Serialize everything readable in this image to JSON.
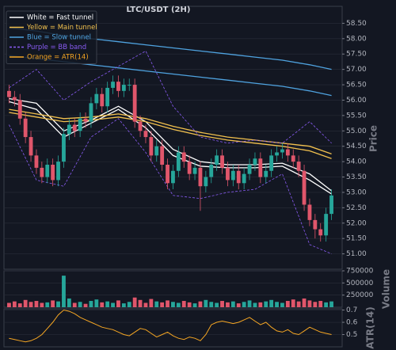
{
  "chart_data": {
    "type": "candlestick",
    "title": "LTC/USDT (2H)",
    "y_label": "Price",
    "up_color": "#26a69a",
    "down_color": "#e0566b",
    "grid": true,
    "legend_position": "upper left",
    "ylim": [
      50.5,
      59.0
    ],
    "yticks": [
      {
        "value": 51,
        "label": "51.00"
      },
      {
        "value": 51.5,
        "label": "51.50"
      },
      {
        "value": 52,
        "label": "52.00"
      },
      {
        "value": 52.5,
        "label": "52.50"
      },
      {
        "value": 53,
        "label": "53.00"
      },
      {
        "value": 53.5,
        "label": "53.50"
      },
      {
        "value": 54,
        "label": "54.00"
      },
      {
        "value": 54.5,
        "label": "54.50"
      },
      {
        "value": 55,
        "label": "55.00"
      },
      {
        "value": 55.5,
        "label": "55.50"
      },
      {
        "value": 56,
        "label": "56.00"
      },
      {
        "value": 56.5,
        "label": "56.50"
      },
      {
        "value": 57,
        "label": "57.00"
      },
      {
        "value": 57.5,
        "label": "57.50"
      },
      {
        "value": 58,
        "label": "58.00"
      },
      {
        "value": 58.5,
        "label": "58.50"
      }
    ],
    "open": [
      56.3,
      56.1,
      56.0,
      55.4,
      54.8,
      54.2,
      53.8,
      53.5,
      53.9,
      53.4,
      54.0,
      54.9,
      55.2,
      55.0,
      55.4,
      55.3,
      55.9,
      56.2,
      55.8,
      56.4,
      56.6,
      56.3,
      56.5,
      56.5,
      55.3,
      55.0,
      54.8,
      54.2,
      54.5,
      53.9,
      53.3,
      53.7,
      54.3,
      54.0,
      53.6,
      53.8,
      53.2,
      53.5,
      53.9,
      54.2,
      53.8,
      53.4,
      53.7,
      53.3,
      53.6,
      53.9,
      54.1,
      53.5,
      53.7,
      54.2,
      54.3,
      54.4,
      54.2,
      54.0,
      53.7,
      52.6,
      52.1,
      51.8,
      51.6,
      52.3
    ],
    "high": [
      56.5,
      56.3,
      56.2,
      55.6,
      55.0,
      54.4,
      54.0,
      54.1,
      54.1,
      54.2,
      55.1,
      55.4,
      55.4,
      55.6,
      55.6,
      56.1,
      56.4,
      56.4,
      56.6,
      56.8,
      56.8,
      56.7,
      56.7,
      56.7,
      55.5,
      55.2,
      55.0,
      54.7,
      54.7,
      54.1,
      53.9,
      54.5,
      54.5,
      54.2,
      54.0,
      54.0,
      53.7,
      54.1,
      54.4,
      54.4,
      54.0,
      53.9,
      53.9,
      53.8,
      54.1,
      54.3,
      54.3,
      53.9,
      54.4,
      54.5,
      54.6,
      54.6,
      54.4,
      54.2,
      53.9,
      52.8,
      52.3,
      52.0,
      52.5,
      53.1
    ],
    "low": [
      55.9,
      55.8,
      55.2,
      54.6,
      54.0,
      53.6,
      53.3,
      53.3,
      53.2,
      53.2,
      53.8,
      54.7,
      54.8,
      54.8,
      55.1,
      55.1,
      55.7,
      55.6,
      55.6,
      56.2,
      56.1,
      56.1,
      56.3,
      55.1,
      54.8,
      54.6,
      54.0,
      54.0,
      53.7,
      53.1,
      53.1,
      53.5,
      53.8,
      53.4,
      53.4,
      52.4,
      53.0,
      53.3,
      53.7,
      53.6,
      53.2,
      53.2,
      53.1,
      53.1,
      53.4,
      53.7,
      53.3,
      53.3,
      53.5,
      54.0,
      54.1,
      54.0,
      53.8,
      53.5,
      52.4,
      51.9,
      51.5,
      51.4,
      51.4,
      52.1
    ],
    "close": [
      56.1,
      56.0,
      55.4,
      54.8,
      54.2,
      53.8,
      53.5,
      53.9,
      53.4,
      54.0,
      54.9,
      55.2,
      55.0,
      55.4,
      55.3,
      55.9,
      56.2,
      55.8,
      56.4,
      56.6,
      56.3,
      56.5,
      56.5,
      55.3,
      55.0,
      54.8,
      54.2,
      54.5,
      53.9,
      53.3,
      53.7,
      54.3,
      54.0,
      53.6,
      53.8,
      53.2,
      53.5,
      53.9,
      54.2,
      53.8,
      53.4,
      53.7,
      53.3,
      53.6,
      53.9,
      54.1,
      53.5,
      53.7,
      54.2,
      54.3,
      54.4,
      54.2,
      54.0,
      53.7,
      52.6,
      52.1,
      51.8,
      51.6,
      52.3,
      52.9
    ],
    "line_x": [
      0,
      5,
      10,
      15,
      20,
      25,
      30,
      35,
      40,
      45,
      50,
      55,
      59
    ],
    "lines": [
      {
        "color": "#ffffff",
        "dashed": false,
        "values": [
          56.05,
          55.9,
          55.0,
          55.35,
          55.8,
          55.3,
          54.4,
          54.0,
          53.9,
          53.9,
          53.95,
          53.6,
          53.05
        ]
      },
      {
        "color": "#ffffff",
        "dashed": false,
        "values": [
          55.95,
          55.7,
          54.8,
          55.25,
          55.7,
          55.1,
          54.2,
          53.85,
          53.8,
          53.8,
          53.85,
          53.4,
          52.95
        ]
      },
      {
        "color": "#f2c14e",
        "dashed": false,
        "values": [
          55.7,
          55.55,
          55.4,
          55.45,
          55.55,
          55.4,
          55.15,
          54.95,
          54.8,
          54.7,
          54.6,
          54.5,
          54.25
        ]
      },
      {
        "color": "#f2c14e",
        "dashed": false,
        "values": [
          55.6,
          55.45,
          55.3,
          55.35,
          55.45,
          55.3,
          55.05,
          54.85,
          54.7,
          54.6,
          54.5,
          54.35,
          54.1
        ]
      },
      {
        "color": "#4fa3e0",
        "dashed": false,
        "values": [
          58.35,
          58.25,
          58.1,
          58.0,
          57.9,
          57.8,
          57.7,
          57.6,
          57.5,
          57.4,
          57.3,
          57.15,
          57.0
        ]
      },
      {
        "color": "#4fa3e0",
        "dashed": false,
        "values": [
          57.45,
          57.35,
          57.25,
          57.15,
          57.05,
          56.95,
          56.85,
          56.75,
          56.65,
          56.55,
          56.45,
          56.3,
          56.15
        ]
      },
      {
        "color": "#8a5cf5",
        "dashed": true,
        "values": [
          56.4,
          57.0,
          56.0,
          56.6,
          57.1,
          57.6,
          55.8,
          54.8,
          54.6,
          54.7,
          54.6,
          55.3,
          54.6
        ]
      },
      {
        "color": "#8a5cf5",
        "dashed": true,
        "values": [
          55.2,
          53.4,
          53.2,
          54.8,
          55.4,
          54.3,
          52.9,
          52.8,
          53.0,
          53.1,
          53.6,
          51.3,
          51.0
        ]
      }
    ],
    "legend": [
      {
        "name": "White = Fast tunnel",
        "color": "#ffffff",
        "dashed": false
      },
      {
        "name": "Yellow = Main tunnel",
        "color": "#f2c14e",
        "dashed": false
      },
      {
        "name": "Blue = Slow tunnel",
        "color": "#4fa3e0",
        "dashed": false
      },
      {
        "name": "Purple = BB band",
        "color": "#8a5cf5",
        "dashed": true
      },
      {
        "name": "Orange = ATR(14)",
        "color": "#f5a623",
        "dashed": false
      }
    ],
    "volume": {
      "label": "Volume",
      "ylim": [
        0,
        750000
      ],
      "yticks": [
        250000,
        500000,
        750000
      ],
      "values": [
        90000,
        120000,
        80000,
        150000,
        110000,
        130000,
        90000,
        100000,
        140000,
        120000,
        650000,
        180000,
        90000,
        110000,
        70000,
        130000,
        160000,
        100000,
        120000,
        90000,
        140000,
        80000,
        110000,
        200000,
        150000,
        90000,
        170000,
        120000,
        100000,
        140000,
        110000,
        90000,
        130000,
        100000,
        80000,
        120000,
        150000,
        110000,
        90000,
        130000,
        100000,
        120000,
        80000,
        110000,
        140000,
        90000,
        100000,
        120000,
        150000,
        110000,
        90000,
        130000,
        160000,
        120000,
        180000,
        140000,
        110000,
        130000,
        100000,
        120000
      ]
    },
    "atr": {
      "label": "ATR(14)",
      "color": "#f5a623",
      "ylim": [
        0.4,
        0.71
      ],
      "yticks": [
        0.5,
        0.6,
        0.7
      ],
      "values": [
        0.47,
        0.46,
        0.45,
        0.44,
        0.45,
        0.47,
        0.5,
        0.55,
        0.6,
        0.66,
        0.7,
        0.69,
        0.67,
        0.64,
        0.62,
        0.6,
        0.58,
        0.56,
        0.55,
        0.54,
        0.52,
        0.5,
        0.49,
        0.52,
        0.55,
        0.54,
        0.51,
        0.48,
        0.5,
        0.52,
        0.49,
        0.47,
        0.46,
        0.48,
        0.47,
        0.45,
        0.5,
        0.58,
        0.6,
        0.61,
        0.6,
        0.59,
        0.6,
        0.62,
        0.64,
        0.61,
        0.58,
        0.6,
        0.56,
        0.53,
        0.52,
        0.54,
        0.51,
        0.5,
        0.53,
        0.56,
        0.54,
        0.52,
        0.51,
        0.5
      ]
    }
  }
}
